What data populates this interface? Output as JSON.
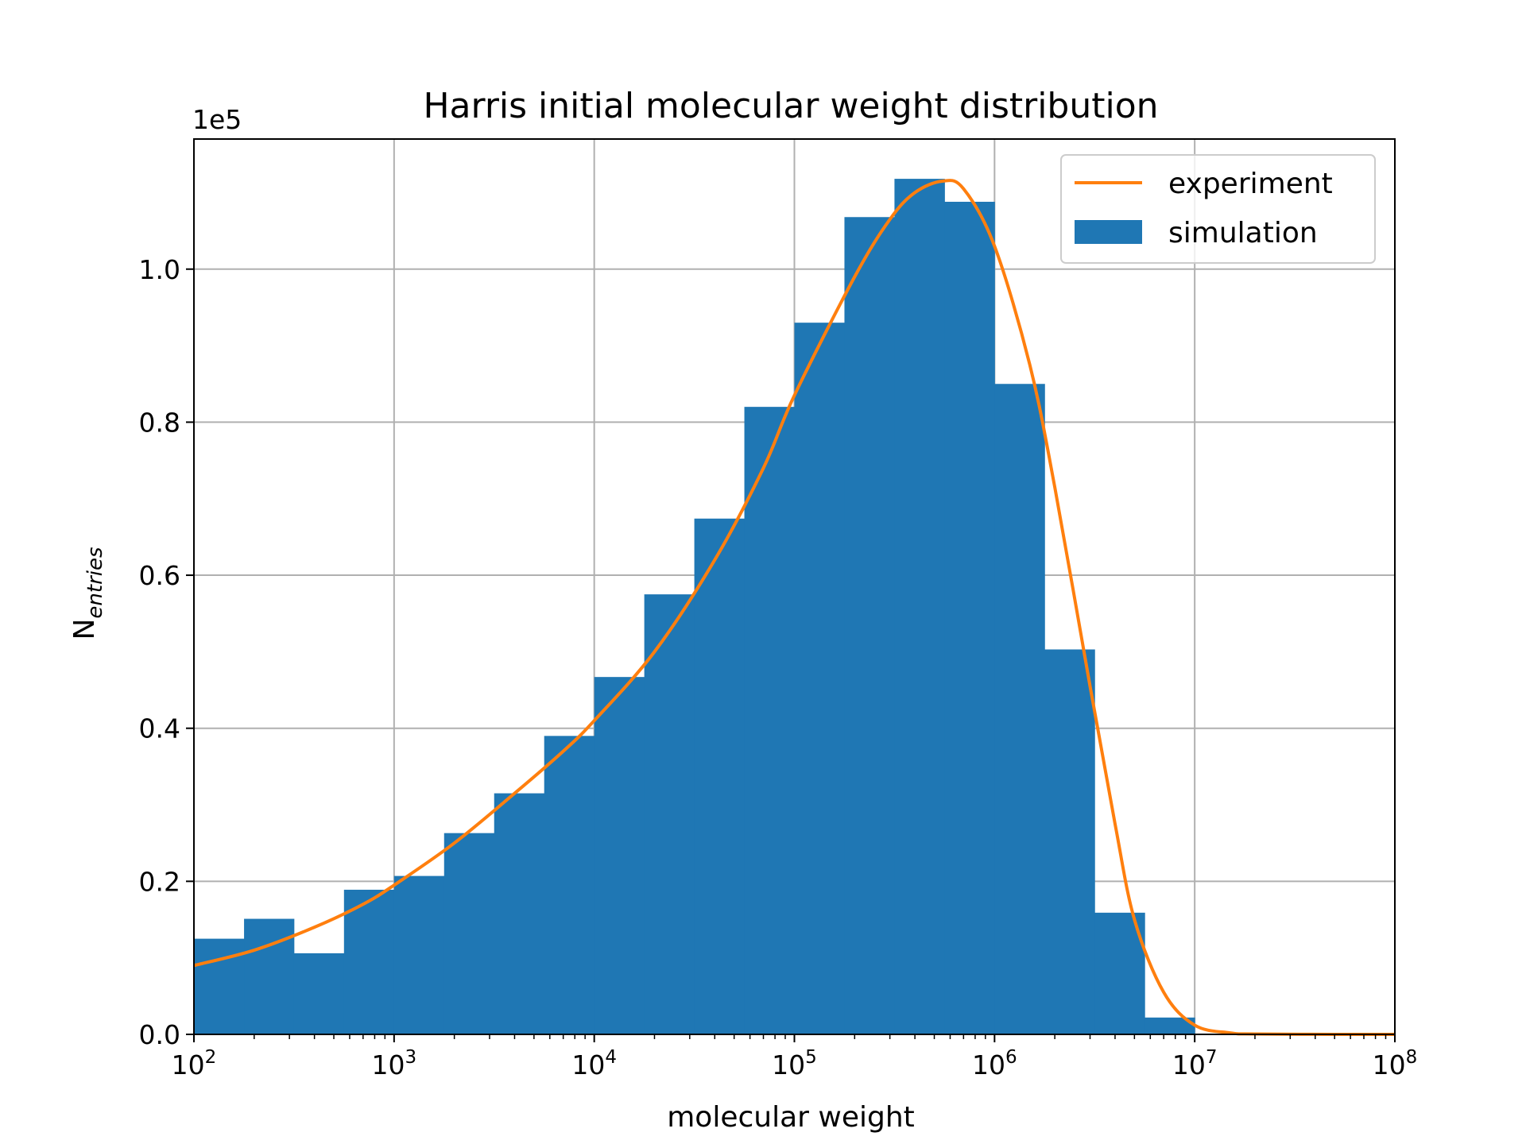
{
  "chart_data": {
    "type": "bar",
    "title": "Harris initial molecular weight distribution",
    "xlabel": "molecular weight",
    "ylabel_main": "N",
    "ylabel_sub": "entries",
    "y_offset_label": "1e5",
    "x_scale": "log",
    "xlim": [
      100,
      100000000
    ],
    "ylim": [
      0,
      117000
    ],
    "x_ticks": [
      {
        "value": 100,
        "base": "10",
        "exp": "2"
      },
      {
        "value": 1000,
        "base": "10",
        "exp": "3"
      },
      {
        "value": 10000,
        "base": "10",
        "exp": "4"
      },
      {
        "value": 100000,
        "base": "10",
        "exp": "5"
      },
      {
        "value": 1000000,
        "base": "10",
        "exp": "6"
      },
      {
        "value": 10000000,
        "base": "10",
        "exp": "7"
      },
      {
        "value": 100000000,
        "base": "10",
        "exp": "8"
      }
    ],
    "y_ticks": [
      {
        "value": 0,
        "label": "0.0"
      },
      {
        "value": 20000,
        "label": "0.2"
      },
      {
        "value": 40000,
        "label": "0.4"
      },
      {
        "value": 60000,
        "label": "0.6"
      },
      {
        "value": 80000,
        "label": "0.8"
      },
      {
        "value": 100000,
        "label": "1.0"
      }
    ],
    "grid": true,
    "legend_position": "top-right",
    "series": [
      {
        "name": "simulation",
        "kind": "histogram",
        "color": "#1f77b4",
        "bin_edges": [
          100,
          178,
          316,
          562,
          1000,
          1778,
          3162,
          5623,
          10000,
          17783,
          31623,
          56234,
          100000,
          177828,
          316228,
          562341,
          1000000,
          1778279,
          3162278,
          5623413,
          10000000,
          17782794
        ],
        "values": [
          12500,
          15100,
          10600,
          18900,
          20700,
          26300,
          31500,
          39000,
          46700,
          57500,
          67400,
          82000,
          93000,
          106800,
          111800,
          108800,
          85000,
          50300,
          15900,
          2200,
          0
        ]
      },
      {
        "name": "experiment",
        "kind": "line",
        "color": "#ff7f0e",
        "x": [
          100,
          200,
          400,
          700,
          1000,
          2000,
          4000,
          7000,
          10000,
          20000,
          40000,
          70000,
          100000,
          200000,
          300000,
          400000,
          550000,
          700000,
          1000000,
          1500000,
          2000000,
          3000000,
          4000000,
          5000000,
          7000000,
          10000000,
          15000000,
          20000000,
          50000000,
          100000000
        ],
        "values": [
          9000,
          11000,
          14000,
          17000,
          19500,
          25000,
          31500,
          37000,
          41000,
          50000,
          62000,
          74000,
          83500,
          99000,
          106500,
          110000,
          111500,
          110500,
          103000,
          87500,
          71500,
          45500,
          27500,
          15000,
          5500,
          1200,
          200,
          50,
          0,
          0
        ]
      }
    ]
  }
}
